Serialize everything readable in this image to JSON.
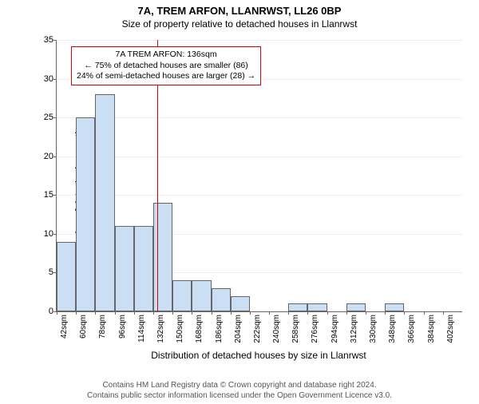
{
  "title": "7A, TREM ARFON, LLANRWST, LL26 0BP",
  "subtitle": "Size of property relative to detached houses in Llanrwst",
  "ylabel": "Number of detached properties",
  "xlabel": "Distribution of detached houses by size in Llanrwst",
  "chart": {
    "type": "histogram",
    "ylim": [
      0,
      35
    ],
    "ytick_step": 5,
    "xlim_sqm": [
      42,
      420
    ],
    "bin_width_sqm": 18,
    "bar_color": "#cbdff4",
    "bar_border": "#666666",
    "grid_color": "#eeeeee",
    "background_color": "#ffffff",
    "bins": [
      {
        "label": "42sqm",
        "start": 42,
        "count": 9
      },
      {
        "label": "60sqm",
        "start": 60,
        "count": 25
      },
      {
        "label": "78sqm",
        "start": 78,
        "count": 28
      },
      {
        "label": "96sqm",
        "start": 96,
        "count": 11
      },
      {
        "label": "114sqm",
        "start": 114,
        "count": 11
      },
      {
        "label": "132sqm",
        "start": 132,
        "count": 14
      },
      {
        "label": "150sqm",
        "start": 150,
        "count": 4
      },
      {
        "label": "168sqm",
        "start": 168,
        "count": 4
      },
      {
        "label": "186sqm",
        "start": 186,
        "count": 3
      },
      {
        "label": "204sqm",
        "start": 204,
        "count": 2
      },
      {
        "label": "222sqm",
        "start": 222,
        "count": 0
      },
      {
        "label": "240sqm",
        "start": 240,
        "count": 0
      },
      {
        "label": "258sqm",
        "start": 258,
        "count": 1
      },
      {
        "label": "276sqm",
        "start": 276,
        "count": 1
      },
      {
        "label": "294sqm",
        "start": 294,
        "count": 0
      },
      {
        "label": "312sqm",
        "start": 312,
        "count": 1
      },
      {
        "label": "330sqm",
        "start": 330,
        "count": 0
      },
      {
        "label": "348sqm",
        "start": 348,
        "count": 1
      },
      {
        "label": "366sqm",
        "start": 366,
        "count": 0
      },
      {
        "label": "384sqm",
        "start": 384,
        "count": 0
      },
      {
        "label": "402sqm",
        "start": 402,
        "count": 0
      }
    ],
    "reference_line": {
      "value_sqm": 136,
      "color": "#d90000"
    },
    "annotation": {
      "border_color": "#d90000",
      "line1": "7A TREM ARFON: 136sqm",
      "line2": "← 75% of detached houses are smaller (86)",
      "line3": "24% of semi-detached houses are larger (28) →"
    }
  },
  "credits": {
    "line1": "Contains HM Land Registry data © Crown copyright and database right 2024.",
    "line2": "Contains public sector information licensed under the Open Government Licence v3.0."
  }
}
